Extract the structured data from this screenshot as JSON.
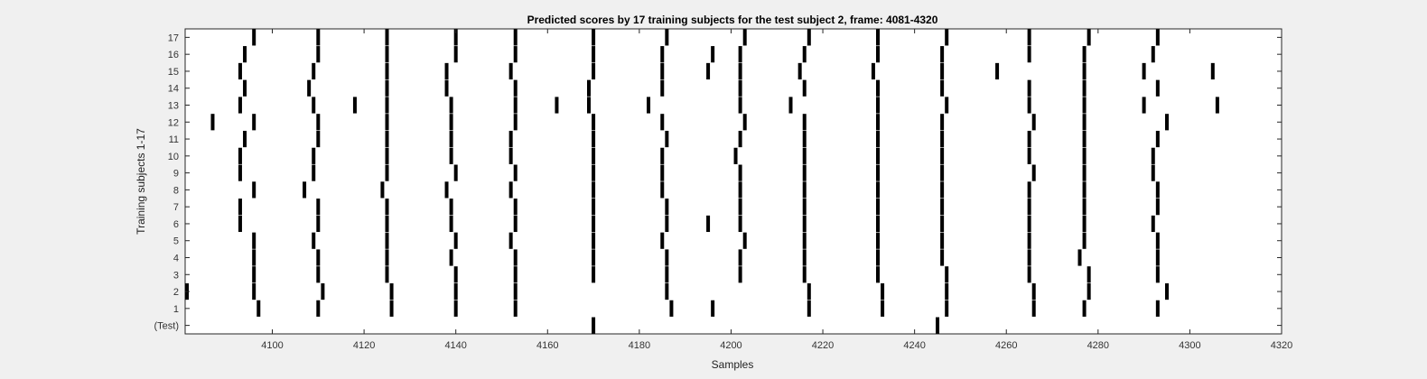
{
  "chart_data": {
    "type": "raster",
    "title": "Predicted scores by 17 training subjects for the test subject 2, frame: 4081-4320",
    "xlabel": "Samples",
    "ylabel": "Training subjects 1-17",
    "xlim": [
      4081,
      4320
    ],
    "x_ticks": [
      4100,
      4120,
      4140,
      4160,
      4180,
      4200,
      4220,
      4240,
      4260,
      4280,
      4300,
      4320
    ],
    "rows": [
      "(Test)",
      "1",
      "2",
      "3",
      "4",
      "5",
      "6",
      "7",
      "8",
      "9",
      "10",
      "11",
      "12",
      "13",
      "14",
      "15",
      "16",
      "17"
    ],
    "bar_color": "#000000",
    "events": [
      {
        "row": "(Test)",
        "x": [
          4170,
          4245
        ]
      },
      {
        "row": "1",
        "x": [
          4097,
          4110,
          4126,
          4140,
          4153,
          4187,
          4196,
          4217,
          4233,
          4247,
          4266,
          4277,
          4293
        ]
      },
      {
        "row": "2",
        "x": [
          4081,
          4096,
          4111,
          4126,
          4140,
          4153,
          4186,
          4217,
          4233,
          4247,
          4266,
          4278,
          4295
        ]
      },
      {
        "row": "3",
        "x": [
          4096,
          4110,
          4125,
          4140,
          4153,
          4170,
          4186,
          4202,
          4216,
          4232,
          4247,
          4265,
          4278,
          4293
        ]
      },
      {
        "row": "4",
        "x": [
          4096,
          4110,
          4125,
          4139,
          4153,
          4170,
          4186,
          4202,
          4216,
          4232,
          4246,
          4265,
          4276,
          4293
        ]
      },
      {
        "row": "5",
        "x": [
          4096,
          4109,
          4125,
          4140,
          4152,
          4170,
          4185,
          4203,
          4216,
          4232,
          4246,
          4265,
          4277,
          4293
        ]
      },
      {
        "row": "6",
        "x": [
          4093,
          4110,
          4125,
          4139,
          4153,
          4170,
          4186,
          4195,
          4202,
          4216,
          4232,
          4246,
          4265,
          4277,
          4292
        ]
      },
      {
        "row": "7",
        "x": [
          4093,
          4110,
          4125,
          4139,
          4153,
          4170,
          4186,
          4202,
          4216,
          4232,
          4246,
          4265,
          4277,
          4293
        ]
      },
      {
        "row": "8",
        "x": [
          4096,
          4107,
          4124,
          4138,
          4152,
          4170,
          4185,
          4202,
          4216,
          4232,
          4246,
          4265,
          4277,
          4293
        ]
      },
      {
        "row": "9",
        "x": [
          4093,
          4109,
          4125,
          4140,
          4153,
          4170,
          4185,
          4202,
          4216,
          4232,
          4246,
          4266,
          4277,
          4292
        ]
      },
      {
        "row": "10",
        "x": [
          4093,
          4109,
          4125,
          4139,
          4152,
          4170,
          4185,
          4201,
          4216,
          4232,
          4246,
          4265,
          4277,
          4292
        ]
      },
      {
        "row": "11",
        "x": [
          4094,
          4110,
          4125,
          4139,
          4152,
          4170,
          4186,
          4202,
          4216,
          4232,
          4246,
          4265,
          4277,
          4293
        ]
      },
      {
        "row": "12",
        "x": [
          4087,
          4096,
          4110,
          4125,
          4139,
          4153,
          4170,
          4185,
          4203,
          4216,
          4232,
          4246,
          4266,
          4277,
          4295
        ]
      },
      {
        "row": "13",
        "x": [
          4093,
          4109,
          4118,
          4125,
          4139,
          4153,
          4162,
          4169,
          4182,
          4202,
          4213,
          4232,
          4247,
          4265,
          4277,
          4290,
          4306
        ]
      },
      {
        "row": "14",
        "x": [
          4094,
          4108,
          4125,
          4138,
          4153,
          4169,
          4185,
          4202,
          4216,
          4232,
          4246,
          4265,
          4277,
          4293
        ]
      },
      {
        "row": "15",
        "x": [
          4093,
          4109,
          4125,
          4138,
          4152,
          4170,
          4185,
          4195,
          4202,
          4215,
          4231,
          4246,
          4258,
          4277,
          4290,
          4305
        ]
      },
      {
        "row": "16",
        "x": [
          4094,
          4110,
          4125,
          4140,
          4153,
          4170,
          4185,
          4196,
          4202,
          4216,
          4232,
          4246,
          4265,
          4277,
          4292
        ]
      },
      {
        "row": "17",
        "x": [
          4096,
          4110,
          4125,
          4140,
          4153,
          4170,
          4186,
          4203,
          4217,
          4232,
          4247,
          4265,
          4278,
          4293
        ]
      }
    ]
  }
}
